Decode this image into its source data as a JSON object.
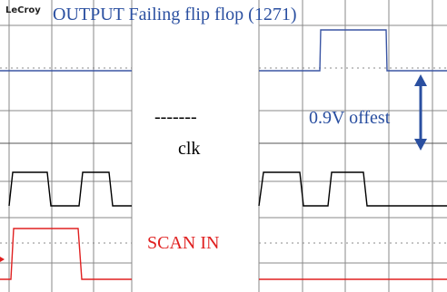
{
  "logo": "LeCroy",
  "title": "OUTPUT Failing flip flop (1271)",
  "dashes": "-------",
  "clock_label": "clk",
  "offset_label": "0.9V offest",
  "scan_label": "SCAN IN"
}
